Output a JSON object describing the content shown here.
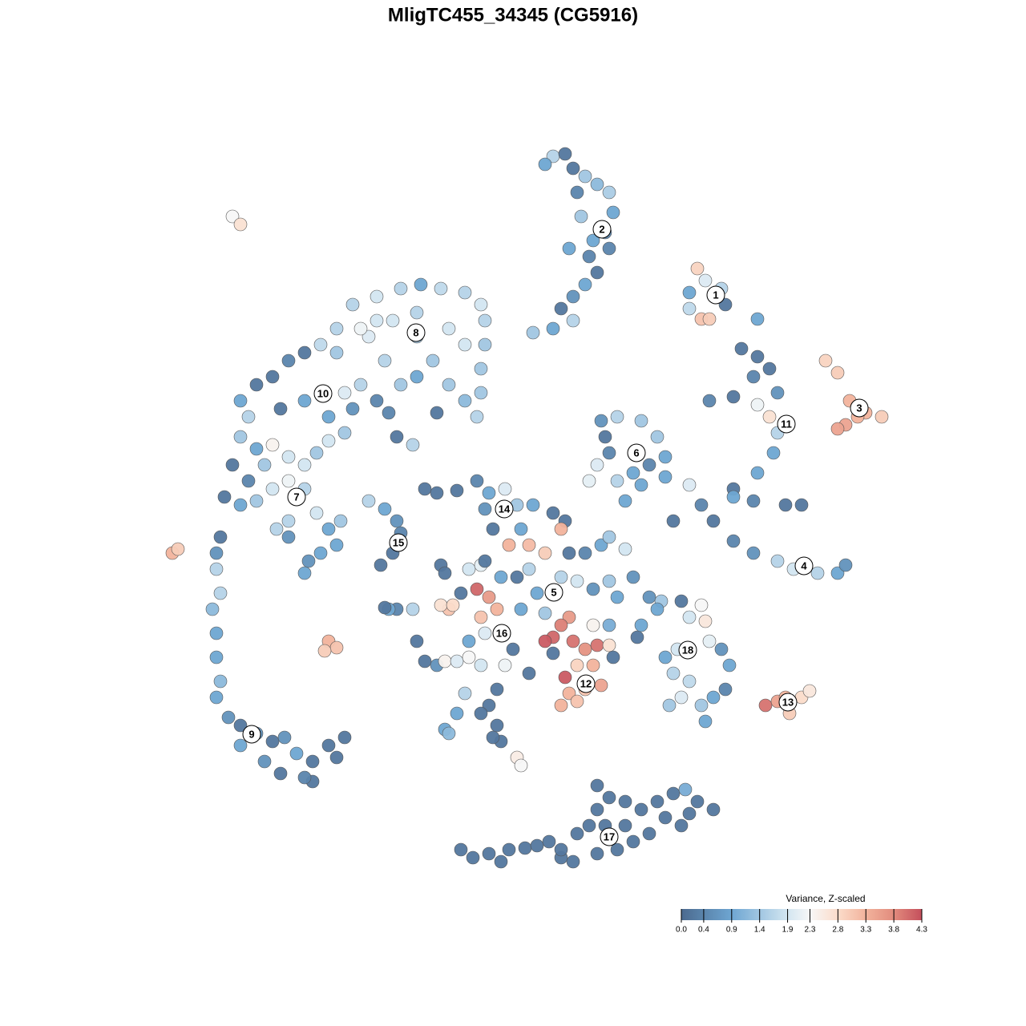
{
  "chart_data": {
    "type": "scatter",
    "title": "MligTC455_34345 (CG5916)",
    "xlim": [
      200,
      1120
    ],
    "ylim": [
      1100,
      180
    ],
    "x": [
      690,
      705,
      715,
      730,
      745,
      760,
      765,
      755,
      740,
      735,
      745,
      730,
      715,
      700,
      715,
      690,
      665,
      680,
      720,
      760,
      710,
      725,
      870,
      880,
      900,
      860,
      905,
      875,
      885,
      945,
      860,
      1030,
      1045,
      1060,
      1080,
      1100,
      1055,
      1045,
      1070,
      925,
      945,
      960,
      940,
      970,
      885,
      915,
      945,
      960,
      970,
      965,
      945,
      915,
      940,
      980,
      1000,
      915,
      860,
      875,
      890,
      915,
      940,
      970,
      990,
      1020,
      1045,
      1055,
      840,
      750,
      770,
      800,
      820,
      830,
      810,
      790,
      770,
      745,
      735,
      760,
      800,
      780,
      830,
      755,
      440,
      470,
      500,
      525,
      550,
      580,
      600,
      605,
      605,
      600,
      600,
      595,
      580,
      560,
      540,
      520,
      500,
      480,
      460,
      450,
      420,
      400,
      380,
      360,
      340,
      320,
      300,
      310,
      300,
      320,
      340,
      360,
      380,
      395,
      410,
      430,
      410,
      430,
      450,
      470,
      440,
      380,
      350,
      330,
      310,
      290,
      280,
      300,
      320,
      340,
      360,
      380,
      395,
      410,
      425,
      420,
      400,
      385,
      380,
      360,
      345,
      360,
      560,
      520,
      490,
      470,
      580,
      420,
      520,
      485,
      545,
      515,
      495,
      275,
      270,
      270,
      275,
      265,
      270,
      270,
      275,
      270,
      285,
      300,
      320,
      300,
      340,
      355,
      330,
      350,
      370,
      390,
      390,
      410,
      420,
      430,
      380,
      460,
      480,
      495,
      500,
      490,
      475,
      290,
      300,
      215,
      222,
      410,
      420,
      405,
      530,
      545,
      570,
      595,
      610,
      630,
      605,
      615,
      645,
      665,
      690,
      705,
      650,
      635,
      660,
      680,
      700,
      710,
      730,
      750,
      760,
      780,
      660,
      645,
      625,
      670,
      700,
      720,
      740,
      770,
      760,
      790,
      650,
      680,
      710,
      700,
      690,
      680,
      715,
      730,
      745,
      720,
      740,
      705,
      710,
      730,
      750,
      740,
      760,
      765,
      700,
      720,
      595,
      610,
      620,
      600,
      605,
      585,
      560,
      550,
      565,
      575,
      585,
      600,
      605,
      550,
      555,
      520,
      530,
      545,
      555,
      570,
      585,
      600,
      630,
      640,
      620,
      610,
      600,
      580,
      570,
      555,
      560,
      620,
      625,
      615,
      645,
      650,
      660,
      690,
      760,
      795,
      495,
      485,
      515,
      480,
      810,
      825,
      850,
      875,
      860,
      880,
      885,
      900,
      910,
      905,
      890,
      860,
      840,
      830,
      835,
      850,
      875,
      880,
      800,
      820,
      845,
      955,
      970,
      985,
      1000,
      1010,
      980,
      575,
      590,
      610,
      625,
      635,
      655,
      670,
      685,
      700,
      715,
      720,
      735,
      745,
      760,
      780,
      800,
      820,
      840,
      855,
      870,
      890,
      860,
      830,
      810,
      790,
      770,
      745,
      755,
      780,
      745,
      850,
      700
    ],
    "y": [
      195,
      192,
      210,
      220,
      230,
      240,
      265,
      290,
      300,
      320,
      340,
      355,
      370,
      385,
      400,
      410,
      415,
      205,
      240,
      310,
      310,
      270,
      335,
      350,
      360,
      365,
      380,
      398,
      398,
      398,
      385,
      450,
      465,
      500,
      515,
      520,
      530,
      535,
      520,
      435,
      445,
      460,
      470,
      490,
      500,
      495,
      505,
      520,
      540,
      565,
      590,
      610,
      625,
      630,
      630,
      620,
      605,
      630,
      650,
      675,
      690,
      700,
      710,
      715,
      715,
      705,
      650,
      525,
      520,
      525,
      545,
      570,
      580,
      590,
      600,
      580,
      600,
      565,
      605,
      625,
      595,
      545,
      380,
      370,
      360,
      355,
      360,
      365,
      380,
      400,
      430,
      460,
      490,
      520,
      500,
      480,
      450,
      470,
      480,
      450,
      420,
      410,
      410,
      430,
      440,
      450,
      470,
      480,
      500,
      520,
      545,
      560,
      555,
      570,
      580,
      565,
      550,
      540,
      520,
      490,
      480,
      500,
      510,
      500,
      510,
      580,
      600,
      580,
      620,
      630,
      625,
      610,
      600,
      610,
      640,
      660,
      650,
      680,
      690,
      700,
      715,
      670,
      660,
      650,
      410,
      420,
      400,
      400,
      430,
      440,
      390,
      515,
      515,
      555,
      545,
      670,
      690,
      710,
      740,
      760,
      790,
      820,
      850,
      870,
      895,
      905,
      915,
      930,
      925,
      920,
      950,
      965,
      940,
      950,
      975,
      930,
      945,
      920,
      970,
      625,
      635,
      650,
      665,
      690,
      705,
      270,
      280,
      690,
      685,
      800,
      808,
      812,
      610,
      615,
      612,
      600,
      615,
      610,
      635,
      660,
      630,
      630,
      640,
      650,
      660,
      680,
      680,
      690,
      660,
      690,
      690,
      680,
      670,
      685,
      710,
      720,
      720,
      740,
      720,
      725,
      735,
      745,
      725,
      720,
      760,
      765,
      770,
      780,
      795,
      800,
      800,
      810,
      805,
      830,
      830,
      845,
      865,
      860,
      855,
      780,
      805,
      820,
      880,
      875,
      735,
      745,
      760,
      770,
      790,
      800,
      760,
      755,
      755,
      740,
      710,
      705,
      700,
      705,
      715,
      800,
      825,
      830,
      825,
      825,
      820,
      830,
      830,
      810,
      860,
      880,
      890,
      865,
      890,
      910,
      915,
      905,
      925,
      920,
      945,
      955,
      840,
      815,
      780,
      795,
      760,
      760,
      760,
      758,
      745,
      750,
      750,
      755,
      770,
      775,
      800,
      810,
      830,
      860,
      870,
      850,
      840,
      820,
      880,
      870,
      880,
      900,
      780,
      760,
      810,
      880,
      875,
      890,
      870,
      862,
      870,
      1060,
      1070,
      1065,
      1075,
      1060,
      1058,
      1055,
      1050,
      1070,
      1075,
      1040,
      1030,
      1010,
      995,
      1000,
      1010,
      1000,
      990,
      985,
      1000,
      1010,
      1015,
      1020,
      1040,
      1050,
      1060,
      1065,
      1030,
      1030,
      980,
      1030,
      1060
    ],
    "color_values": [
      1.6,
      0.2,
      0.2,
      1.4,
      1.2,
      1.5,
      0.9,
      0.4,
      0.9,
      0.4,
      0.2,
      0.9,
      0.6,
      0.2,
      1.6,
      0.9,
      1.4,
      0.9,
      0.4,
      0.4,
      0.9,
      1.4,
      2.9,
      2.0,
      1.6,
      0.9,
      0.2,
      3.1,
      3.0,
      0.9,
      1.7,
      2.9,
      3.0,
      3.3,
      3.3,
      3.0,
      3.5,
      3.5,
      3.3,
      0.2,
      0.2,
      0.2,
      0.4,
      0.6,
      0.4,
      0.2,
      2.2,
      2.7,
      1.6,
      0.9,
      0.9,
      0.2,
      0.4,
      0.2,
      0.2,
      0.9,
      2.0,
      0.4,
      0.2,
      0.4,
      0.6,
      1.6,
      1.9,
      1.6,
      0.9,
      0.6,
      0.2,
      0.6,
      1.6,
      1.4,
      1.4,
      0.9,
      0.4,
      0.9,
      1.6,
      2.0,
      2.1,
      0.4,
      0.9,
      0.9,
      0.9,
      0.2,
      1.6,
      1.9,
      1.6,
      0.9,
      1.7,
      1.6,
      1.9,
      1.6,
      1.4,
      1.4,
      1.4,
      1.6,
      1.2,
      1.4,
      1.4,
      0.9,
      1.4,
      1.6,
      2.0,
      2.2,
      1.6,
      1.7,
      0.2,
      0.4,
      0.2,
      0.2,
      0.9,
      1.6,
      1.4,
      0.9,
      2.4,
      1.9,
      1.9,
      1.4,
      1.9,
      1.4,
      0.9,
      2.0,
      1.6,
      0.4,
      0.6,
      0.9,
      0.2,
      1.4,
      0.4,
      0.2,
      0.2,
      0.9,
      1.4,
      1.9,
      2.2,
      1.6,
      1.9,
      0.9,
      1.4,
      0.9,
      0.9,
      0.6,
      0.9,
      0.6,
      1.6,
      1.6,
      1.9,
      1.4,
      1.9,
      1.9,
      1.9,
      1.4,
      1.6,
      0.4,
      0.2,
      1.6,
      0.2,
      0.2,
      0.6,
      1.6,
      1.6,
      1.2,
      0.9,
      0.9,
      1.2,
      0.9,
      0.6,
      0.2,
      0.6,
      0.9,
      0.2,
      0.6,
      0.6,
      0.2,
      0.9,
      0.2,
      0.2,
      0.2,
      0.2,
      0.2,
      0.4,
      1.6,
      0.9,
      0.6,
      0.4,
      0.2,
      0.2,
      2.3,
      2.7,
      3.3,
      3.0,
      3.3,
      3.1,
      3.0,
      0.2,
      0.2,
      0.2,
      0.4,
      0.9,
      2.0,
      0.6,
      0.2,
      1.4,
      0.9,
      0.2,
      0.2,
      0.9,
      3.3,
      3.2,
      3.0,
      3.3,
      0.2,
      0.4,
      0.9,
      1.4,
      1.9,
      1.6,
      0.2,
      0.9,
      0.9,
      1.6,
      1.9,
      0.6,
      0.9,
      1.4,
      0.6,
      0.9,
      1.4,
      3.6,
      3.9,
      4.1,
      4.2,
      4.0,
      3.7,
      4.0,
      2.9,
      3.3,
      4.2,
      3.3,
      3.1,
      3.5,
      2.4,
      2.7,
      0.2,
      3.3,
      3.1,
      4.1,
      3.6,
      3.3,
      3.1,
      2.0,
      0.9,
      3.1,
      2.7,
      2.8,
      0.2,
      1.9,
      2.1,
      0.2,
      0.2,
      0.2,
      0.2,
      0.2,
      0.6,
      2.4,
      2.0,
      2.3,
      1.9,
      2.2,
      0.2,
      0.2,
      0.2,
      0.2,
      1.6,
      0.9,
      0.9,
      1.2,
      0.2,
      0.2,
      0.2,
      2.5,
      2.3,
      0.2,
      0.2,
      1.0,
      0.2,
      0.4,
      0.9,
      1.6,
      0.2,
      0.6,
      1.4,
      0.2,
      2.3,
      1.9,
      2.6,
      2.1,
      0.6,
      0.9,
      0.4,
      0.9,
      1.7,
      1.6,
      0.9,
      1.4,
      2.0,
      1.4,
      0.9,
      0.9,
      0.9,
      1.9,
      4.0,
      3.5,
      3.0,
      2.8,
      2.6,
      3.3,
      0.2,
      0.2,
      0.2,
      0.2,
      0.2,
      0.2,
      0.2,
      0.2,
      0.2,
      0.2,
      0.2,
      0.2,
      0.2,
      0.2,
      0.2,
      0.2,
      0.2,
      0.2,
      1.0,
      0.2,
      0.2,
      0.2,
      0.2,
      0.2,
      0.2,
      0.2,
      0.2,
      0.2,
      0.2,
      0.2,
      0.2,
      0.2
    ],
    "clusters": {
      "labels": [
        1,
        2,
        3,
        4,
        5,
        6,
        7,
        8,
        9,
        10,
        11,
        12,
        13,
        14,
        15,
        16,
        17,
        18
      ],
      "x": [
        893,
        751,
        1072,
        1003,
        691,
        794,
        370,
        519,
        314,
        403,
        981,
        731,
        983,
        629,
        497,
        626,
        760,
        858
      ],
      "y": [
        368,
        286,
        509,
        706,
        739,
        565,
        620,
        415,
        916,
        491,
        529,
        853,
        876,
        635,
        677,
        790,
        1044,
        811
      ]
    },
    "colorbar": {
      "title": "Variance, Z-scaled",
      "lim": [
        0,
        4.3
      ],
      "ticks": [
        {
          "value": 0,
          "label": "0.0"
        },
        0.4,
        0.9,
        1.4,
        1.9,
        2.3,
        2.8,
        3.3,
        3.8,
        4.3
      ],
      "colorscale": [
        [
          0,
          "#4b6a8f"
        ],
        [
          0.9,
          "#6ea6d2"
        ],
        [
          1.9,
          "#d3e6f1"
        ],
        [
          2.3,
          "#f7f7f7"
        ],
        [
          2.8,
          "#fbdcca"
        ],
        [
          3.3,
          "#f2b39c"
        ],
        [
          3.8,
          "#e28b7d"
        ],
        [
          4.3,
          "#c44f5c"
        ]
      ]
    }
  }
}
